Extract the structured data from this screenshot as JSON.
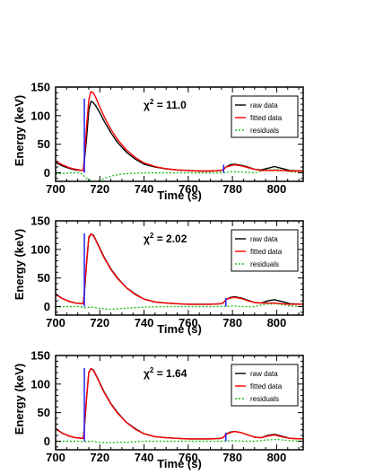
{
  "colors": {
    "raw": "#000000",
    "fitted": "#ff0000",
    "residuals": "#22c022",
    "impulse": "#2020ff"
  },
  "chart_data": [
    {
      "type": "line",
      "xlabel": "Time (s)",
      "ylabel": "Energy (keV)",
      "xlim": [
        700,
        812
      ],
      "ylim": [
        -15,
        150
      ],
      "xticks": [
        700,
        720,
        740,
        760,
        780,
        800
      ],
      "yticks": [
        0,
        50,
        100,
        150
      ],
      "annotation": {
        "symbol": "χ",
        "exp": "2",
        "value": "= 11.0"
      },
      "legend_position": "top-right",
      "impulses": [
        {
          "x": 713,
          "y": 130
        },
        {
          "x": 776,
          "y": 14
        }
      ],
      "series": [
        {
          "name": "raw data",
          "style": "solid",
          "x": [
            700,
            703,
            706,
            709,
            712.5,
            713,
            714,
            715,
            716,
            717,
            718,
            720,
            722,
            725,
            728,
            732,
            736,
            740,
            745,
            750,
            755,
            760,
            765,
            770,
            775,
            776,
            777,
            779,
            781,
            784,
            787,
            790,
            793,
            796,
            799,
            802,
            806,
            812
          ],
          "y": [
            18,
            12,
            8,
            5,
            4,
            20,
            60,
            110,
            125,
            123,
            118,
            105,
            90,
            70,
            53,
            36,
            24,
            15,
            10,
            7,
            5,
            4,
            3,
            3,
            4,
            6,
            10,
            14,
            15,
            13,
            10,
            6,
            5,
            8,
            11,
            8,
            4,
            3
          ]
        },
        {
          "name": "fitted data",
          "style": "solid",
          "x": [
            700,
            703,
            706,
            709,
            712.5,
            713,
            714,
            715,
            716,
            717,
            718,
            720,
            722,
            725,
            728,
            732,
            736,
            740,
            745,
            750,
            755,
            760,
            765,
            770,
            775,
            776,
            777,
            779,
            781,
            784,
            787,
            790,
            793,
            796,
            799,
            802,
            806,
            812
          ],
          "y": [
            20,
            14,
            9,
            6,
            4,
            25,
            80,
            128,
            142,
            140,
            133,
            115,
            98,
            76,
            58,
            40,
            27,
            17,
            11,
            7,
            5,
            4,
            3,
            3,
            4,
            6,
            10,
            12,
            14,
            12,
            9,
            6,
            4,
            4,
            4,
            4,
            3,
            3
          ]
        },
        {
          "name": "residuals",
          "style": "dotted",
          "x": [
            700,
            704,
            708,
            711,
            713,
            714,
            716,
            718,
            722,
            726,
            730,
            735,
            740,
            750,
            760,
            770,
            776,
            780,
            785,
            790,
            795,
            800,
            806,
            812
          ],
          "y": [
            -2,
            -1,
            0,
            0,
            -6,
            -10,
            -14,
            -17,
            -10,
            -5,
            -2,
            -1,
            0,
            0,
            0,
            0,
            0,
            2,
            1,
            0,
            5,
            6,
            2,
            0
          ]
        }
      ]
    },
    {
      "type": "line",
      "xlabel": "Time (s)",
      "ylabel": "Energy (keV)",
      "xlim": [
        700,
        812
      ],
      "ylim": [
        -15,
        150
      ],
      "xticks": [
        700,
        720,
        740,
        760,
        780,
        800
      ],
      "yticks": [
        0,
        50,
        100,
        150
      ],
      "annotation": {
        "symbol": "χ",
        "exp": "2",
        "value": "= 2.02"
      },
      "legend_position": "top-right",
      "impulses": [
        {
          "x": 713,
          "y": 128
        },
        {
          "x": 777,
          "y": 15
        }
      ],
      "series": [
        {
          "name": "raw data",
          "style": "solid",
          "x": [
            700,
            703,
            706,
            709,
            712.5,
            713,
            714,
            715,
            716,
            717,
            718,
            720,
            722,
            725,
            728,
            732,
            736,
            740,
            745,
            750,
            755,
            760,
            765,
            770,
            775,
            776,
            777,
            779,
            781,
            784,
            787,
            790,
            793,
            796,
            799,
            802,
            806,
            812
          ],
          "y": [
            22,
            14,
            9,
            6,
            5,
            22,
            75,
            120,
            127,
            125,
            118,
            102,
            86,
            66,
            50,
            33,
            22,
            13,
            8,
            6,
            5,
            4,
            4,
            4,
            5,
            7,
            12,
            16,
            17,
            15,
            11,
            7,
            6,
            10,
            12,
            9,
            5,
            4
          ]
        },
        {
          "name": "fitted data",
          "style": "solid",
          "x": [
            700,
            703,
            706,
            709,
            712.5,
            713,
            714,
            715,
            716,
            717,
            718,
            720,
            722,
            725,
            728,
            732,
            736,
            740,
            745,
            750,
            755,
            760,
            765,
            770,
            775,
            776,
            777,
            779,
            781,
            784,
            787,
            790,
            793,
            796,
            799,
            802,
            806,
            812
          ],
          "y": [
            21,
            14,
            9,
            6,
            5,
            24,
            78,
            122,
            127,
            124,
            117,
            101,
            85,
            65,
            49,
            33,
            21,
            13,
            8,
            6,
            5,
            4,
            4,
            4,
            5,
            7,
            12,
            15,
            16,
            14,
            10,
            7,
            6,
            6,
            6,
            5,
            4,
            4
          ]
        },
        {
          "name": "residuals",
          "style": "dotted",
          "x": [
            700,
            704,
            708,
            711,
            713,
            716,
            720,
            724,
            728,
            732,
            736,
            740,
            750,
            760,
            770,
            776,
            780,
            785,
            790,
            795,
            800,
            806,
            812
          ],
          "y": [
            -1,
            0,
            0,
            0,
            -2,
            -1,
            -3,
            -5,
            -4,
            -3,
            -2,
            -1,
            0,
            0,
            0,
            0,
            1,
            0,
            0,
            4,
            5,
            1,
            0
          ]
        }
      ]
    },
    {
      "type": "line",
      "xlabel": "Time (s)",
      "ylabel": "Energy (keV)",
      "xlim": [
        700,
        812
      ],
      "ylim": [
        -15,
        150
      ],
      "xticks": [
        700,
        720,
        740,
        760,
        780,
        800
      ],
      "yticks": [
        0,
        50,
        100,
        150
      ],
      "annotation": {
        "symbol": "χ",
        "exp": "2",
        "value": "= 1.64"
      },
      "legend_position": "top-right",
      "impulses": [
        {
          "x": 713,
          "y": 128
        },
        {
          "x": 777,
          "y": 15
        }
      ],
      "series": [
        {
          "name": "raw data",
          "style": "solid",
          "x": [
            700,
            703,
            706,
            709,
            712.5,
            713,
            714,
            715,
            716,
            717,
            718,
            720,
            722,
            725,
            728,
            732,
            736,
            740,
            745,
            750,
            755,
            760,
            765,
            770,
            775,
            776,
            777,
            779,
            781,
            784,
            787,
            790,
            793,
            796,
            799,
            802,
            806,
            812
          ],
          "y": [
            22,
            14,
            9,
            6,
            5,
            22,
            75,
            120,
            127,
            125,
            118,
            102,
            86,
            66,
            50,
            33,
            22,
            13,
            8,
            6,
            5,
            4,
            4,
            4,
            5,
            7,
            12,
            16,
            17,
            15,
            11,
            7,
            6,
            10,
            12,
            9,
            5,
            4
          ]
        },
        {
          "name": "fitted data",
          "style": "solid",
          "x": [
            700,
            703,
            706,
            709,
            712.5,
            713,
            714,
            715,
            716,
            717,
            718,
            720,
            722,
            725,
            728,
            732,
            736,
            740,
            745,
            750,
            755,
            760,
            765,
            770,
            775,
            776,
            777,
            779,
            781,
            784,
            787,
            790,
            793,
            796,
            799,
            802,
            806,
            812
          ],
          "y": [
            22,
            14,
            9,
            6,
            5,
            23,
            77,
            121,
            127,
            124,
            117,
            101,
            85,
            65,
            49,
            33,
            21,
            13,
            8,
            6,
            5,
            4,
            4,
            4,
            5,
            7,
            12,
            15,
            17,
            15,
            11,
            7,
            6,
            9,
            11,
            8,
            5,
            4
          ]
        },
        {
          "name": "residuals",
          "style": "dotted",
          "x": [
            700,
            704,
            708,
            711,
            713,
            716,
            720,
            724,
            728,
            732,
            736,
            740,
            750,
            760,
            770,
            776,
            780,
            785,
            790,
            795,
            800,
            806,
            812
          ],
          "y": [
            -1,
            0,
            0,
            0,
            -1,
            0,
            -2,
            -3,
            -2,
            -2,
            -1,
            0,
            0,
            0,
            0,
            0,
            1,
            0,
            0,
            2,
            3,
            1,
            0
          ]
        }
      ]
    }
  ]
}
